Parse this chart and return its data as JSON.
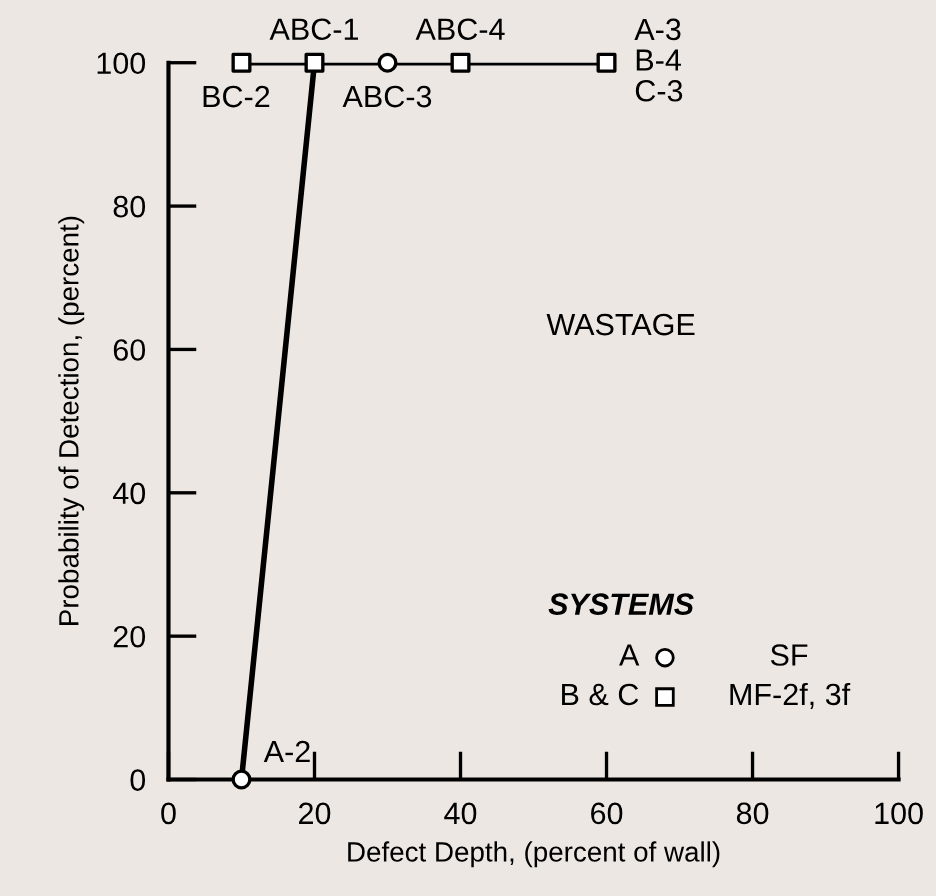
{
  "chart_data": {
    "type": "line",
    "xlabel": "Defect Depth, (percent of wall)",
    "ylabel": "Probability of Detection, (percent)",
    "xlim": [
      0,
      100
    ],
    "ylim": [
      0,
      100
    ],
    "xticks": [
      0,
      20,
      40,
      60,
      80,
      100
    ],
    "yticks": [
      0,
      20,
      40,
      60,
      80,
      100
    ],
    "grid": false,
    "legend": "bottom right",
    "legend_title": "SYSTEMS",
    "series": [
      {
        "color": "#000000",
        "marker": "none",
        "x": [
          10,
          20
        ],
        "values": [
          0,
          100
        ]
      },
      {
        "color": "#000000",
        "marker": "none",
        "x": [
          10,
          60
        ],
        "values": [
          100,
          100
        ]
      },
      {
        "type": "scatter",
        "name": "A",
        "color": "#000000",
        "marker": "circle",
        "x": [
          10,
          30
        ],
        "values": [
          0,
          100
        ]
      },
      {
        "type": "scatter",
        "name": "B & C",
        "color": "#000000",
        "marker": "square",
        "x": [
          10,
          20,
          40,
          60
        ],
        "values": [
          100,
          100,
          100,
          100
        ]
      }
    ],
    "annotations": [
      {
        "text": "A-2",
        "x": 10,
        "y": 0
      },
      {
        "text": "BC-2",
        "x": 10,
        "y": 100
      },
      {
        "text": "ABC-1",
        "x": 20,
        "y": 100
      },
      {
        "text": "ABC-3",
        "x": 30,
        "y": 100
      },
      {
        "text": "ABC-4",
        "x": 40,
        "y": 100
      },
      {
        "text": "A-3\nB-4\nC-3",
        "x": 60,
        "y": 100
      },
      "WASTAGE",
      "SF",
      "MF-2f, 3f"
    ]
  }
}
